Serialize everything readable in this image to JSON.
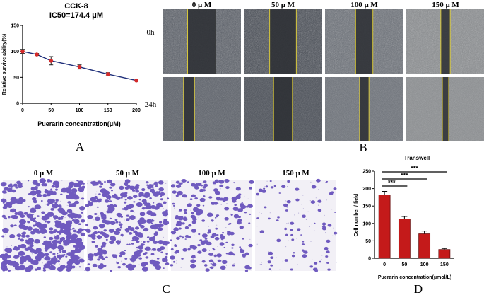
{
  "panel_labels": {
    "A": "A",
    "B": "B",
    "C": "C",
    "D": "D"
  },
  "chart_data": [
    {
      "type": "line",
      "title": "CCK-8",
      "subtitle": "IC50=174.4 μM",
      "xlabel": "Puerarin concentration(μM)",
      "ylabel": "Relative survive ability(%)",
      "xlim": [
        0,
        200
      ],
      "ylim": [
        0,
        150
      ],
      "xticks": [
        0,
        50,
        100,
        150,
        200
      ],
      "yticks": [
        0,
        50,
        100,
        150
      ],
      "x": [
        0,
        25,
        50,
        100,
        150,
        200
      ],
      "y": [
        100,
        94,
        82,
        70,
        56,
        44
      ],
      "err": [
        4,
        2,
        8,
        4,
        3,
        0
      ],
      "line_color": "#1f2f7a",
      "marker_color": "#d42a2a",
      "grid": false
    },
    {
      "type": "bar",
      "title": "Transwell",
      "xlabel": "Puerarin concentration(μmol/L)",
      "ylabel": "Cell number / field",
      "categories": [
        "0",
        "50",
        "100",
        "150"
      ],
      "values": [
        182,
        113,
        70,
        25
      ],
      "err": [
        10,
        7,
        8,
        3
      ],
      "ylim": [
        0,
        250
      ],
      "yticks": [
        0,
        50,
        100,
        150,
        200,
        250
      ],
      "bar_color": "#c41a1a",
      "significance": [
        {
          "from": "0",
          "to": "50",
          "label": "***"
        },
        {
          "from": "0",
          "to": "100",
          "label": "***"
        },
        {
          "from": "0",
          "to": "150",
          "label": "***"
        }
      ]
    }
  ],
  "wound_healing": {
    "columns": [
      "0 μ M",
      "50 μ M",
      "100 μ M",
      "150 μ M"
    ],
    "rows": [
      "0h",
      "24h"
    ],
    "gap_fraction": [
      [
        0.36,
        0.34,
        0.22,
        0.12
      ],
      [
        0.14,
        0.24,
        0.12,
        0.08
      ]
    ]
  },
  "transwell_images": {
    "columns": [
      "0 μ M",
      "50 μ M",
      "100 μ M",
      "150 μ M"
    ],
    "density": [
      1.0,
      0.75,
      0.5,
      0.18
    ]
  },
  "colors": {
    "stain": "#4a2fb0",
    "line": "#d8c83a"
  }
}
